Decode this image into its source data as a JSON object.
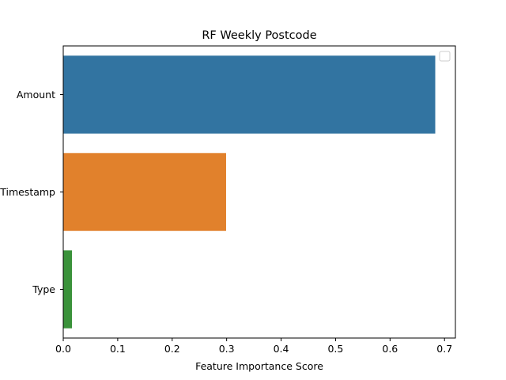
{
  "chart_data": {
    "type": "bar",
    "orientation": "horizontal",
    "title": "RF Weekly Postcode",
    "xlabel": "Feature Importance Score",
    "ylabel": "",
    "categories": [
      "Amount",
      "Timestamp",
      "Type"
    ],
    "values": [
      0.683,
      0.299,
      0.016
    ],
    "colors": [
      "#3274a1",
      "#e1812c",
      "#3a923a"
    ],
    "xlim": [
      0,
      0.72
    ],
    "xticks": [
      0.0,
      0.1,
      0.2,
      0.3,
      0.4,
      0.5,
      0.6,
      0.7
    ],
    "xtick_labels": [
      "0.0",
      "0.1",
      "0.2",
      "0.3",
      "0.4",
      "0.5",
      "0.6",
      "0.7"
    ],
    "legend": {
      "placement": "top-right",
      "entries": []
    },
    "grid": false
  }
}
